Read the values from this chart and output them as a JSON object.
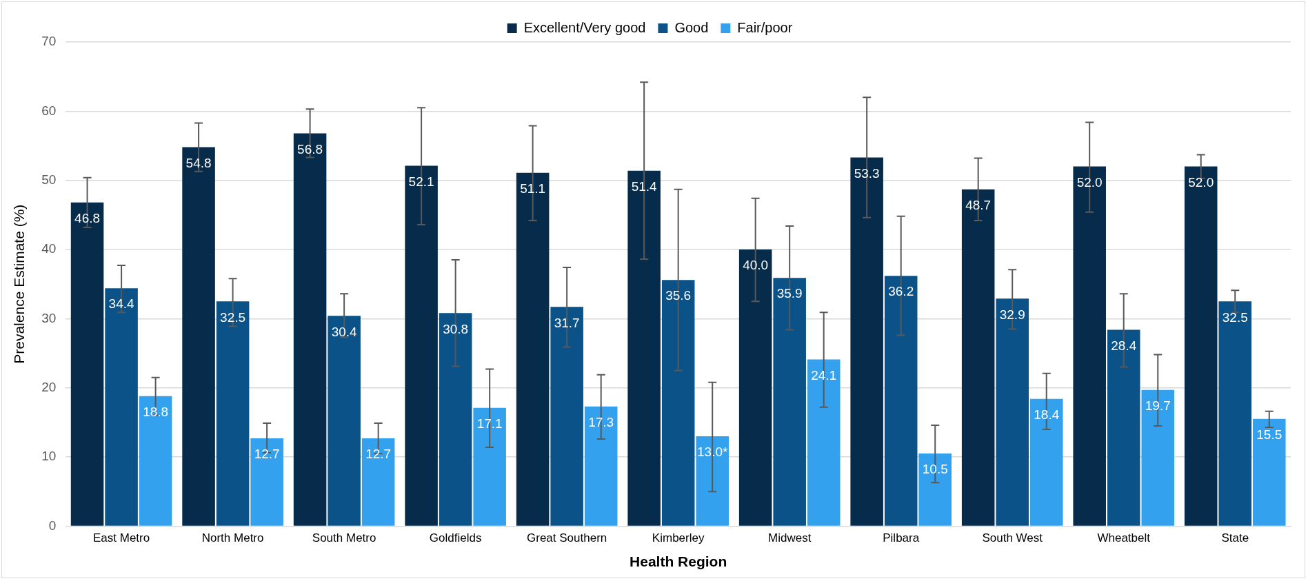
{
  "chart_data": {
    "type": "bar",
    "xlabel": "Health Region",
    "ylabel": "Prevalence Estimate (%)",
    "categories": [
      "East Metro",
      "North Metro",
      "South Metro",
      "Goldfields",
      "Great Southern",
      "Kimberley",
      "Midwest",
      "Pilbara",
      "South West",
      "Wheatbelt",
      "State"
    ],
    "series": [
      {
        "name": "Excellent/Very good",
        "color": "#072b4a",
        "values": [
          46.8,
          54.8,
          56.8,
          52.1,
          51.1,
          51.4,
          40.0,
          53.3,
          48.7,
          52.0,
          52.0
        ],
        "value_labels": [
          "46.8",
          "54.8",
          "56.8",
          "52.1",
          "51.1",
          "51.4",
          "40.0",
          "53.3",
          "48.7",
          "52.0",
          "52.0"
        ],
        "errors": [
          [
            43.2,
            50.4
          ],
          [
            51.3,
            58.3
          ],
          [
            53.3,
            60.3
          ],
          [
            43.6,
            60.5
          ],
          [
            44.2,
            57.9
          ],
          [
            38.6,
            64.2
          ],
          [
            32.5,
            47.4
          ],
          [
            44.6,
            62.0
          ],
          [
            44.2,
            53.2
          ],
          [
            45.4,
            58.4
          ],
          [
            50.3,
            53.7
          ]
        ]
      },
      {
        "name": "Good",
        "color": "#0b5288",
        "values": [
          34.4,
          32.5,
          30.4,
          30.8,
          31.7,
          35.6,
          35.9,
          36.2,
          32.9,
          28.4,
          32.5
        ],
        "value_labels": [
          "34.4",
          "32.5",
          "30.4",
          "30.8",
          "31.7",
          "35.6",
          "35.9",
          "36.2",
          "32.9",
          "28.4",
          "32.5"
        ],
        "errors": [
          [
            30.9,
            37.7
          ],
          [
            28.9,
            35.8
          ],
          [
            27.3,
            33.6
          ],
          [
            23.1,
            38.5
          ],
          [
            25.9,
            37.4
          ],
          [
            22.5,
            48.7
          ],
          [
            28.4,
            43.4
          ],
          [
            27.6,
            44.8
          ],
          [
            28.5,
            37.1
          ],
          [
            23.0,
            33.6
          ],
          [
            30.9,
            34.1
          ]
        ]
      },
      {
        "name": "Fair/poor",
        "color": "#33a1ee",
        "values": [
          18.8,
          12.7,
          12.7,
          17.1,
          17.3,
          13.0,
          24.1,
          10.5,
          18.4,
          19.7,
          15.5
        ],
        "value_labels": [
          "18.8",
          "12.7",
          "12.7",
          "17.1",
          "17.3",
          "13.0*",
          "24.1",
          "10.5",
          "18.4",
          "19.7",
          "15.5"
        ],
        "errors": [
          [
            16.0,
            21.5
          ],
          [
            10.6,
            14.9
          ],
          [
            10.5,
            14.9
          ],
          [
            11.4,
            22.7
          ],
          [
            12.6,
            21.9
          ],
          [
            5.0,
            20.8
          ],
          [
            17.2,
            30.9
          ],
          [
            6.3,
            14.6
          ],
          [
            14.0,
            22.1
          ],
          [
            14.5,
            24.8
          ],
          [
            14.3,
            16.6
          ]
        ]
      }
    ],
    "ylim": [
      0,
      70
    ],
    "yticks": [
      0,
      10,
      20,
      30,
      40,
      50,
      60,
      70
    ],
    "grid": "y",
    "legend": "top"
  }
}
